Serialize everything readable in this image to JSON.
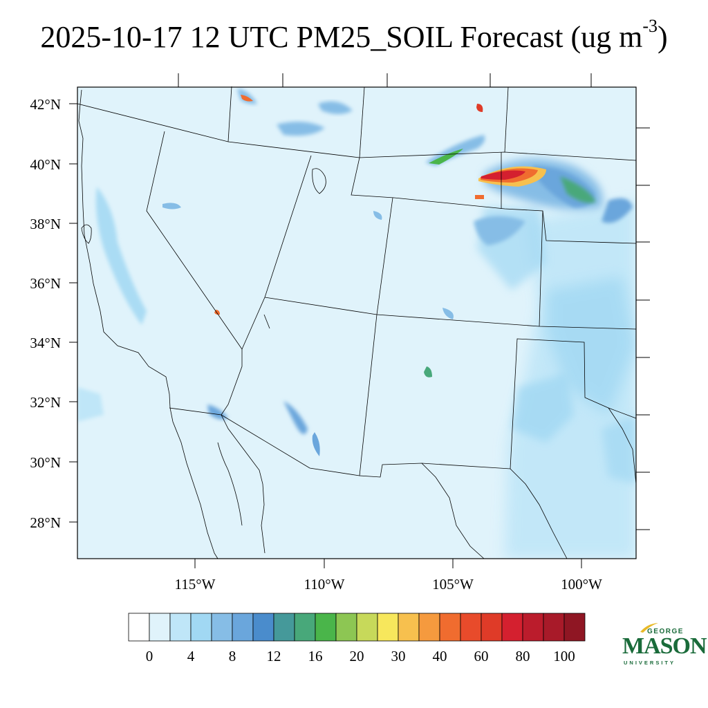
{
  "title": {
    "main": "2025-10-17 12 UTC PM25_SOIL Forecast (ug m",
    "exp": "-3",
    "close": ")"
  },
  "lat_labels": [
    "42°N",
    "40°N",
    "38°N",
    "36°N",
    "34°N",
    "32°N",
    "30°N",
    "28°N"
  ],
  "lon_labels": [
    "115°W",
    "110°W",
    "105°W",
    "100°W"
  ],
  "colorbar": {
    "labels": [
      "0",
      "4",
      "8",
      "12",
      "16",
      "20",
      "30",
      "40",
      "60",
      "80",
      "100"
    ],
    "colors": [
      "#ffffff",
      "#e0f3fb",
      "#bfe6f8",
      "#a1d8f3",
      "#86bde6",
      "#6aa6dc",
      "#4a8ccc",
      "#45999a",
      "#48a87a",
      "#4ab54a",
      "#8dc653",
      "#c7d95a",
      "#f7e75c",
      "#f7c04e",
      "#f59a3e",
      "#f06c2f",
      "#e84b2b",
      "#df3b28",
      "#d4202f",
      "#bb1c2c",
      "#a81a29",
      "#8f1623"
    ]
  },
  "logo": {
    "line1": "GEORGE",
    "line2": "MASON",
    "line3": "UNIVERSITY"
  },
  "colors": {
    "background_field": "#e0f3fb",
    "accent_green": "#1a6b3a"
  }
}
